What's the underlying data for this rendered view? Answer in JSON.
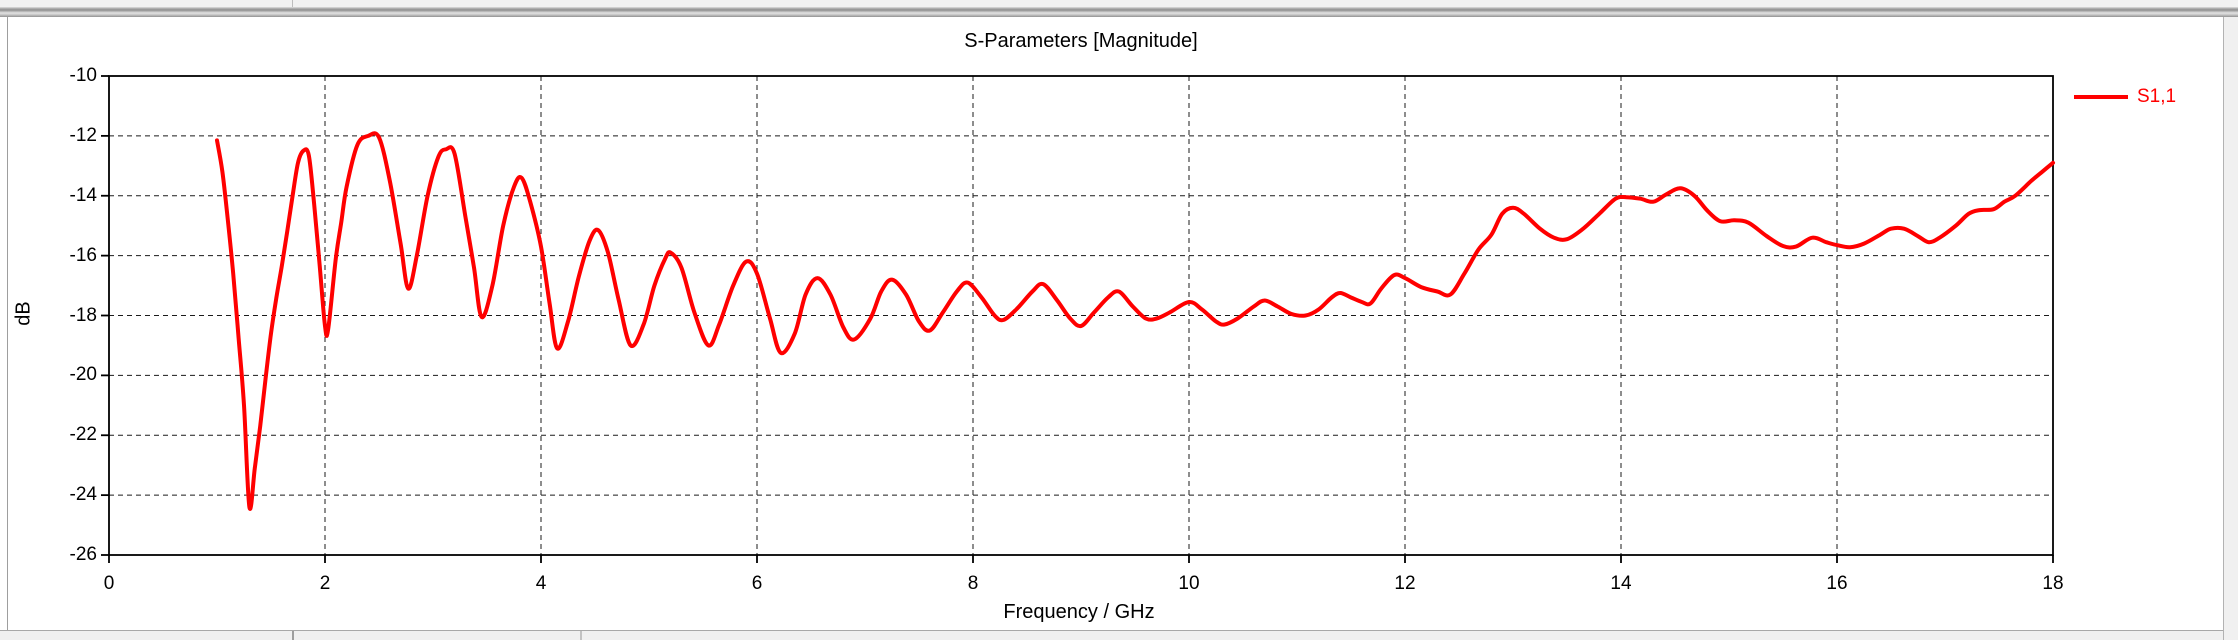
{
  "chart_data": {
    "type": "line",
    "title": "S-Parameters [Magnitude]",
    "xlabel": "Frequency / GHz",
    "ylabel": "dB",
    "xlim": [
      0,
      18
    ],
    "ylim": [
      -26,
      -10
    ],
    "x_ticks": [
      0,
      2,
      4,
      6,
      8,
      10,
      12,
      14,
      16,
      18
    ],
    "y_ticks": [
      -10,
      -12,
      -14,
      -16,
      -18,
      -20,
      -22,
      -24,
      -26
    ],
    "grid": "dashed",
    "legend_position": "outside-top-right",
    "series": [
      {
        "name": "S1,1",
        "color": "#ff0000",
        "points": [
          [
            1.0,
            -12.15
          ],
          [
            1.05,
            -13.2
          ],
          [
            1.1,
            -14.8
          ],
          [
            1.15,
            -16.6
          ],
          [
            1.2,
            -18.75
          ],
          [
            1.25,
            -21.0
          ],
          [
            1.3,
            -24.4
          ],
          [
            1.35,
            -23.1
          ],
          [
            1.4,
            -21.7
          ],
          [
            1.45,
            -20.1
          ],
          [
            1.5,
            -18.6
          ],
          [
            1.55,
            -17.4
          ],
          [
            1.6,
            -16.35
          ],
          [
            1.65,
            -15.2
          ],
          [
            1.7,
            -14.0
          ],
          [
            1.75,
            -12.9
          ],
          [
            1.8,
            -12.5
          ],
          [
            1.85,
            -12.65
          ],
          [
            1.9,
            -14.3
          ],
          [
            1.95,
            -16.3
          ],
          [
            2.0,
            -18.35
          ],
          [
            2.03,
            -18.45
          ],
          [
            2.1,
            -16.1
          ],
          [
            2.15,
            -14.9
          ],
          [
            2.2,
            -13.7
          ],
          [
            2.3,
            -12.3
          ],
          [
            2.4,
            -12.0
          ],
          [
            2.5,
            -12.05
          ],
          [
            2.6,
            -13.5
          ],
          [
            2.7,
            -15.6
          ],
          [
            2.77,
            -17.1
          ],
          [
            2.85,
            -16.0
          ],
          [
            2.95,
            -14.0
          ],
          [
            3.05,
            -12.7
          ],
          [
            3.12,
            -12.45
          ],
          [
            3.2,
            -12.6
          ],
          [
            3.3,
            -14.7
          ],
          [
            3.38,
            -16.4
          ],
          [
            3.45,
            -18.05
          ],
          [
            3.55,
            -17.0
          ],
          [
            3.65,
            -15.0
          ],
          [
            3.75,
            -13.7
          ],
          [
            3.82,
            -13.4
          ],
          [
            3.9,
            -14.2
          ],
          [
            4.0,
            -15.7
          ],
          [
            4.08,
            -17.6
          ],
          [
            4.15,
            -19.1
          ],
          [
            4.25,
            -18.2
          ],
          [
            4.35,
            -16.7
          ],
          [
            4.45,
            -15.5
          ],
          [
            4.53,
            -15.15
          ],
          [
            4.62,
            -15.9
          ],
          [
            4.72,
            -17.5
          ],
          [
            4.83,
            -19.0
          ],
          [
            4.95,
            -18.3
          ],
          [
            5.05,
            -17.0
          ],
          [
            5.15,
            -16.1
          ],
          [
            5.2,
            -15.9
          ],
          [
            5.3,
            -16.4
          ],
          [
            5.42,
            -17.9
          ],
          [
            5.55,
            -19.0
          ],
          [
            5.65,
            -18.3
          ],
          [
            5.78,
            -17.0
          ],
          [
            5.9,
            -16.2
          ],
          [
            6.0,
            -16.6
          ],
          [
            6.12,
            -18.1
          ],
          [
            6.22,
            -19.25
          ],
          [
            6.35,
            -18.6
          ],
          [
            6.45,
            -17.3
          ],
          [
            6.56,
            -16.75
          ],
          [
            6.68,
            -17.3
          ],
          [
            6.8,
            -18.4
          ],
          [
            6.9,
            -18.8
          ],
          [
            7.05,
            -18.1
          ],
          [
            7.15,
            -17.2
          ],
          [
            7.25,
            -16.8
          ],
          [
            7.38,
            -17.3
          ],
          [
            7.5,
            -18.2
          ],
          [
            7.6,
            -18.5
          ],
          [
            7.72,
            -17.9
          ],
          [
            7.85,
            -17.2
          ],
          [
            7.95,
            -16.9
          ],
          [
            8.08,
            -17.4
          ],
          [
            8.2,
            -18.0
          ],
          [
            8.28,
            -18.15
          ],
          [
            8.4,
            -17.8
          ],
          [
            8.55,
            -17.2
          ],
          [
            8.65,
            -16.95
          ],
          [
            8.78,
            -17.5
          ],
          [
            8.9,
            -18.1
          ],
          [
            9.0,
            -18.35
          ],
          [
            9.12,
            -17.9
          ],
          [
            9.25,
            -17.4
          ],
          [
            9.35,
            -17.2
          ],
          [
            9.48,
            -17.7
          ],
          [
            9.6,
            -18.1
          ],
          [
            9.7,
            -18.1
          ],
          [
            9.82,
            -17.9
          ],
          [
            10.0,
            -17.55
          ],
          [
            10.12,
            -17.8
          ],
          [
            10.25,
            -18.2
          ],
          [
            10.33,
            -18.3
          ],
          [
            10.45,
            -18.1
          ],
          [
            10.6,
            -17.7
          ],
          [
            10.7,
            -17.5
          ],
          [
            10.82,
            -17.7
          ],
          [
            10.95,
            -17.95
          ],
          [
            11.08,
            -18.0
          ],
          [
            11.2,
            -17.8
          ],
          [
            11.32,
            -17.4
          ],
          [
            11.4,
            -17.25
          ],
          [
            11.5,
            -17.4
          ],
          [
            11.6,
            -17.55
          ],
          [
            11.68,
            -17.6
          ],
          [
            11.78,
            -17.1
          ],
          [
            11.9,
            -16.65
          ],
          [
            12.0,
            -16.75
          ],
          [
            12.15,
            -17.05
          ],
          [
            12.3,
            -17.2
          ],
          [
            12.42,
            -17.3
          ],
          [
            12.55,
            -16.6
          ],
          [
            12.68,
            -15.8
          ],
          [
            12.8,
            -15.3
          ],
          [
            12.9,
            -14.6
          ],
          [
            13.0,
            -14.4
          ],
          [
            13.1,
            -14.6
          ],
          [
            13.25,
            -15.1
          ],
          [
            13.38,
            -15.4
          ],
          [
            13.5,
            -15.45
          ],
          [
            13.65,
            -15.1
          ],
          [
            13.8,
            -14.6
          ],
          [
            13.95,
            -14.1
          ],
          [
            14.05,
            -14.05
          ],
          [
            14.18,
            -14.1
          ],
          [
            14.3,
            -14.2
          ],
          [
            14.42,
            -13.95
          ],
          [
            14.55,
            -13.75
          ],
          [
            14.68,
            -14.0
          ],
          [
            14.8,
            -14.5
          ],
          [
            14.92,
            -14.85
          ],
          [
            15.05,
            -14.82
          ],
          [
            15.18,
            -14.9
          ],
          [
            15.35,
            -15.35
          ],
          [
            15.5,
            -15.68
          ],
          [
            15.62,
            -15.7
          ],
          [
            15.77,
            -15.4
          ],
          [
            15.9,
            -15.55
          ],
          [
            16.0,
            -15.65
          ],
          [
            16.12,
            -15.72
          ],
          [
            16.25,
            -15.6
          ],
          [
            16.4,
            -15.3
          ],
          [
            16.5,
            -15.1
          ],
          [
            16.62,
            -15.1
          ],
          [
            16.75,
            -15.35
          ],
          [
            16.85,
            -15.55
          ],
          [
            16.95,
            -15.4
          ],
          [
            17.1,
            -15.0
          ],
          [
            17.22,
            -14.6
          ],
          [
            17.32,
            -14.48
          ],
          [
            17.45,
            -14.45
          ],
          [
            17.55,
            -14.2
          ],
          [
            17.65,
            -14.0
          ],
          [
            17.8,
            -13.5
          ],
          [
            17.9,
            -13.2
          ],
          [
            18.0,
            -12.9
          ]
        ]
      }
    ]
  },
  "colors": {
    "curve": "#ff0000",
    "text": "#000000",
    "grid": "#1b1b1b",
    "frame": "#000000",
    "chrome": "#f0f0f0",
    "canvas": "#ffffff"
  }
}
